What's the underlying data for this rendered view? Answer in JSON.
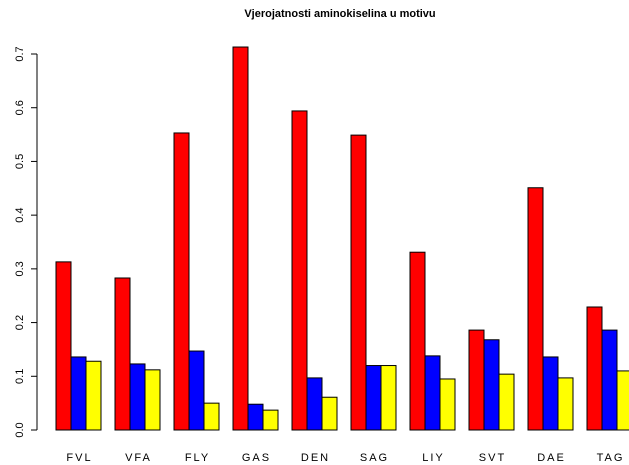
{
  "chart_data": {
    "type": "bar",
    "title": "Vjerojatnosti aminokiselina u motivu",
    "categories": [
      "FVL",
      "VFA",
      "FLY",
      "GAS",
      "DEN",
      "SAG",
      "LIY",
      "SVT",
      "DAE",
      "TAG"
    ],
    "series": [
      {
        "color": "#ff0000",
        "values": [
          0.313,
          0.283,
          0.553,
          0.713,
          0.594,
          0.549,
          0.331,
          0.186,
          0.451,
          0.229
        ]
      },
      {
        "color": "#0000ff",
        "values": [
          0.136,
          0.123,
          0.147,
          0.048,
          0.097,
          0.12,
          0.138,
          0.168,
          0.136,
          0.186
        ]
      },
      {
        "color": "#ffff00",
        "values": [
          0.128,
          0.112,
          0.05,
          0.037,
          0.061,
          0.12,
          0.095,
          0.104,
          0.097,
          0.11
        ]
      }
    ],
    "ylim": [
      0,
      0.7
    ],
    "yticks": [
      {
        "value": 0,
        "label": "0.0"
      },
      0.1,
      0.2,
      0.3,
      0.4,
      0.5,
      0.6,
      0.7
    ]
  }
}
